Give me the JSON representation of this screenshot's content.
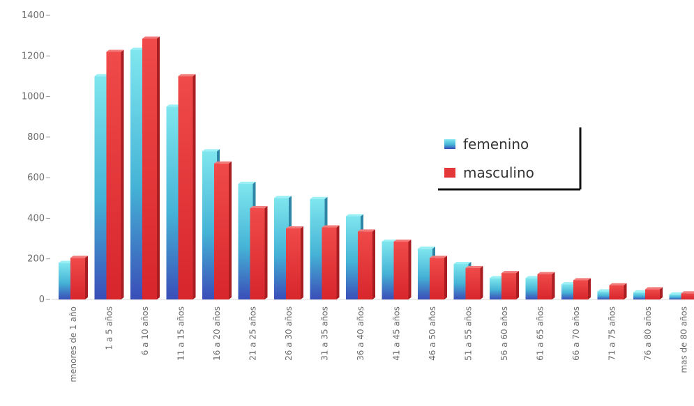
{
  "chart_data": {
    "type": "bar",
    "categories": [
      "menores de 1 año",
      "1 a 5 años",
      "6 a 10 años",
      "11 a 15 años",
      "16 a 20 años",
      "21 a 25 años",
      "26 a 30 años",
      "31 a 35 años",
      "36 a 40 años",
      "41 a 45 años",
      "46 a 50 años",
      "51 a 55 años",
      "56 a 60 años",
      "61 a 65 años",
      "66 a 70 años",
      "71 a 75 años",
      "76 a 80 años",
      "mas de 80 años"
    ],
    "series": [
      {
        "name": "femenino",
        "values": [
          180,
          1100,
          1230,
          950,
          730,
          570,
          500,
          495,
          410,
          285,
          250,
          175,
          105,
          105,
          75,
          40,
          35,
          25
        ]
      },
      {
        "name": "masculino",
        "values": [
          205,
          1220,
          1285,
          1100,
          670,
          450,
          350,
          355,
          335,
          285,
          205,
          155,
          130,
          125,
          95,
          70,
          50,
          30
        ]
      }
    ],
    "ylim": [
      0,
      1400
    ],
    "yticks": [
      0,
      200,
      400,
      600,
      800,
      1000,
      1200,
      1400
    ],
    "grid": false,
    "legend": "right",
    "colors": {
      "femenino": "#3fb7cf",
      "masculino": "#e4373a"
    }
  }
}
